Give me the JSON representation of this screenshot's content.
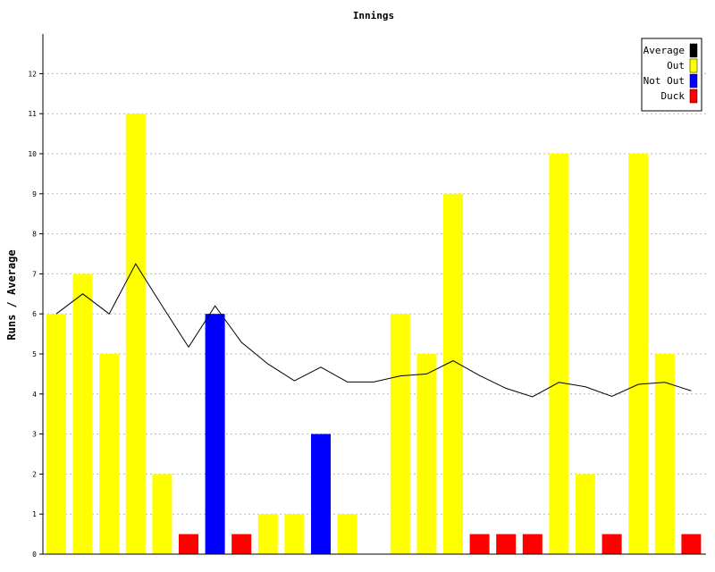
{
  "chart_data": {
    "type": "bar",
    "title": "Innings",
    "xlabel": "",
    "ylabel": "Runs / Average",
    "ylim": [
      0,
      13
    ],
    "yticks": [
      0,
      1,
      2,
      3,
      4,
      5,
      6,
      7,
      8,
      9,
      10,
      11,
      12
    ],
    "grid": "horizontal dashed",
    "legend_position": "top-right",
    "legend": [
      {
        "name": "Average",
        "color": "#000000"
      },
      {
        "name": "Out",
        "color": "#ffff00"
      },
      {
        "name": "Not Out",
        "color": "#0000ff"
      },
      {
        "name": "Duck",
        "color": "#ff0000"
      }
    ],
    "innings": [
      {
        "runs": 6,
        "status": "Out"
      },
      {
        "runs": 7,
        "status": "Out"
      },
      {
        "runs": 5,
        "status": "Out"
      },
      {
        "runs": 11,
        "status": "Out"
      },
      {
        "runs": 2,
        "status": "Out"
      },
      {
        "runs": 0,
        "status": "Duck"
      },
      {
        "runs": 6,
        "status": "Not Out"
      },
      {
        "runs": 0,
        "status": "Duck"
      },
      {
        "runs": 1,
        "status": "Out"
      },
      {
        "runs": 1,
        "status": "Out"
      },
      {
        "runs": 3,
        "status": "Not Out"
      },
      {
        "runs": 1,
        "status": "Out"
      },
      {
        "runs": 0,
        "status": "Out"
      },
      {
        "runs": 6,
        "status": "Out"
      },
      {
        "runs": 5,
        "status": "Out"
      },
      {
        "runs": 9,
        "status": "Out"
      },
      {
        "runs": 0,
        "status": "Duck"
      },
      {
        "runs": 0,
        "status": "Duck"
      },
      {
        "runs": 0,
        "status": "Duck"
      },
      {
        "runs": 10,
        "status": "Out"
      },
      {
        "runs": 2,
        "status": "Out"
      },
      {
        "runs": 0,
        "status": "Duck"
      },
      {
        "runs": 10,
        "status": "Out"
      },
      {
        "runs": 5,
        "status": "Out"
      },
      {
        "runs": 0,
        "status": "Duck"
      }
    ],
    "duck_marker_value": 0.5,
    "average": [
      6.0,
      6.5,
      6.0,
      7.25,
      6.2,
      5.17,
      6.2,
      5.29,
      4.75,
      4.33,
      4.67,
      4.3,
      4.3,
      4.45,
      4.5,
      4.83,
      4.46,
      4.14,
      3.93,
      4.29,
      4.18,
      3.94,
      4.24,
      4.29,
      4.08
    ]
  }
}
